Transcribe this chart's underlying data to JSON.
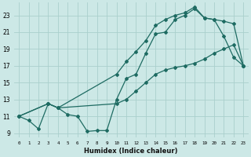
{
  "xlabel": "Humidex (Indice chaleur)",
  "bg_color": "#cce8e6",
  "grid_color": "#aacfcc",
  "line_color": "#1e6b62",
  "markersize": 2.0,
  "linewidth": 0.9,
  "xlim": [
    -0.5,
    23.5
  ],
  "ylim": [
    8.5,
    24.5
  ],
  "xticks": [
    0,
    1,
    2,
    3,
    4,
    5,
    6,
    7,
    8,
    9,
    10,
    11,
    12,
    13,
    14,
    15,
    16,
    17,
    18,
    19,
    20,
    21,
    22,
    23
  ],
  "yticks": [
    9,
    11,
    13,
    15,
    17,
    19,
    21,
    23
  ],
  "line1_x": [
    0,
    1,
    2,
    3,
    4,
    5,
    6,
    7,
    8,
    9,
    10,
    11,
    12,
    13,
    14,
    15,
    16,
    17,
    18,
    19,
    20,
    21,
    22,
    23
  ],
  "line1_y": [
    11.0,
    10.5,
    9.5,
    12.5,
    12.0,
    11.2,
    11.0,
    9.2,
    9.3,
    9.3,
    13.0,
    15.5,
    16.0,
    18.5,
    20.8,
    21.0,
    22.5,
    23.0,
    23.8,
    22.7,
    22.5,
    20.5,
    18.0,
    17.0
  ],
  "line2_x": [
    0,
    3,
    4,
    10,
    11,
    12,
    13,
    14,
    15,
    16,
    17,
    18,
    19,
    20,
    21,
    22,
    23
  ],
  "line2_y": [
    11.0,
    12.5,
    12.0,
    16.0,
    17.5,
    18.7,
    20.0,
    21.8,
    22.5,
    23.0,
    23.3,
    24.0,
    22.7,
    22.5,
    22.3,
    22.0,
    17.0
  ],
  "line3_x": [
    0,
    3,
    4,
    10,
    11,
    12,
    13,
    14,
    15,
    16,
    17,
    18,
    19,
    20,
    21,
    22,
    23
  ],
  "line3_y": [
    11.0,
    12.5,
    12.0,
    12.5,
    13.0,
    14.0,
    15.0,
    16.0,
    16.5,
    16.8,
    17.0,
    17.3,
    17.8,
    18.5,
    19.0,
    19.5,
    17.0
  ]
}
